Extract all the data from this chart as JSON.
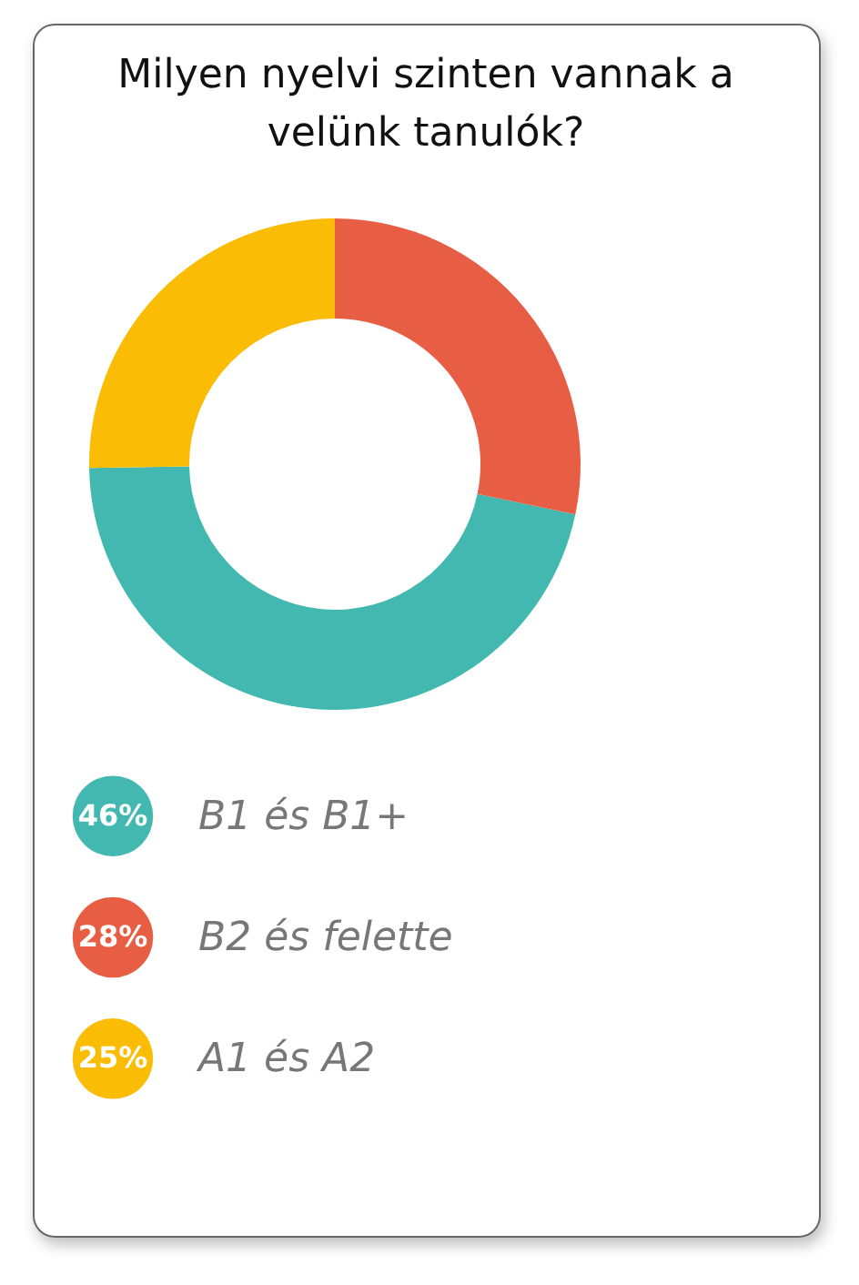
{
  "chart_data": {
    "type": "donut",
    "title": "Milyen nyelvi szinten vannak a velünk tanulók?",
    "categories": [
      "B1 és B1+",
      "B2 és felette",
      "A1 és A2"
    ],
    "values": [
      46,
      28,
      25
    ],
    "colors": [
      "#43b8b0",
      "#e85e45",
      "#fbbc05"
    ],
    "value_labels": [
      "46%",
      "28%",
      "25%"
    ],
    "legend": "bottom"
  }
}
